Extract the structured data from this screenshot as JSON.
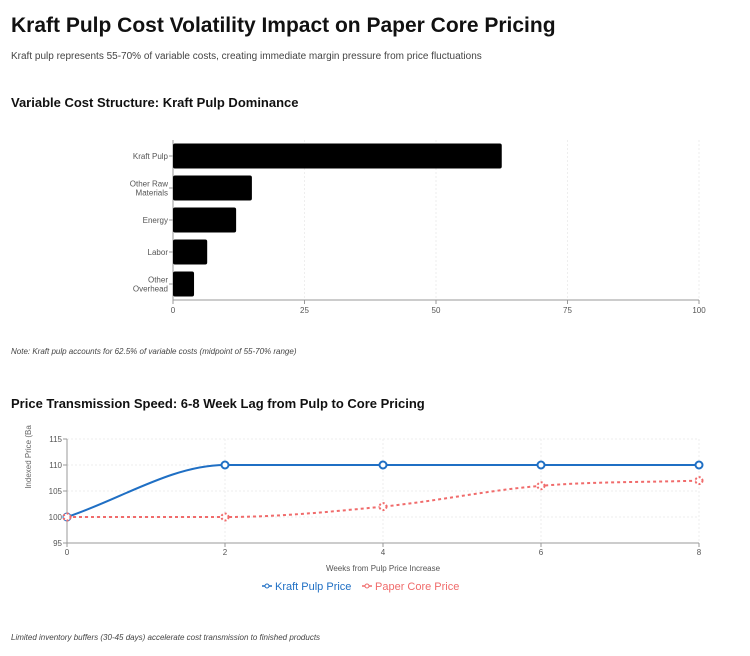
{
  "header": {
    "title": "Kraft Pulp Cost Volatility Impact on Paper Core Pricing",
    "subtitle": "Kraft pulp represents 55-70% of variable costs, creating immediate margin pressure from price fluctuations"
  },
  "chart_data": [
    {
      "type": "bar",
      "orientation": "horizontal",
      "title": "Variable Cost Structure: Kraft Pulp Dominance",
      "categories": [
        "Kraft Pulp",
        "Other Raw Materials",
        "Energy",
        "Labor",
        "Other Overhead"
      ],
      "values": [
        62.5,
        15,
        12,
        6.5,
        4
      ],
      "xlim": [
        0,
        100
      ],
      "xticks": [
        0,
        25,
        50,
        75,
        100
      ],
      "color": "#000000",
      "grid": true,
      "note": "Note: Kraft pulp accounts for 62.5% of variable costs (midpoint of 55-70% range)"
    },
    {
      "type": "line",
      "title": "Price Transmission Speed: 6-8 Week Lag from Pulp to Core Pricing",
      "xlabel": "Weeks from Pulp Price Increase",
      "ylabel": "Indexed Price (Ba",
      "x": [
        0,
        2,
        4,
        6,
        8
      ],
      "ylim": [
        95,
        115
      ],
      "yticks": [
        95,
        100,
        105,
        110,
        115
      ],
      "xticks": [
        0,
        2,
        4,
        6,
        8
      ],
      "grid": true,
      "legend": "bottom",
      "series": [
        {
          "name": "Kraft Pulp Price",
          "values": [
            100,
            110,
            110,
            110,
            110
          ],
          "color": "#1f6fc4",
          "style": "solid"
        },
        {
          "name": "Paper Core Price",
          "values": [
            100,
            100,
            102,
            106,
            107
          ],
          "color": "#f06b6b",
          "style": "dotted"
        }
      ],
      "note": "Limited inventory buffers (30-45 days) accelerate cost transmission to finished products"
    }
  ]
}
